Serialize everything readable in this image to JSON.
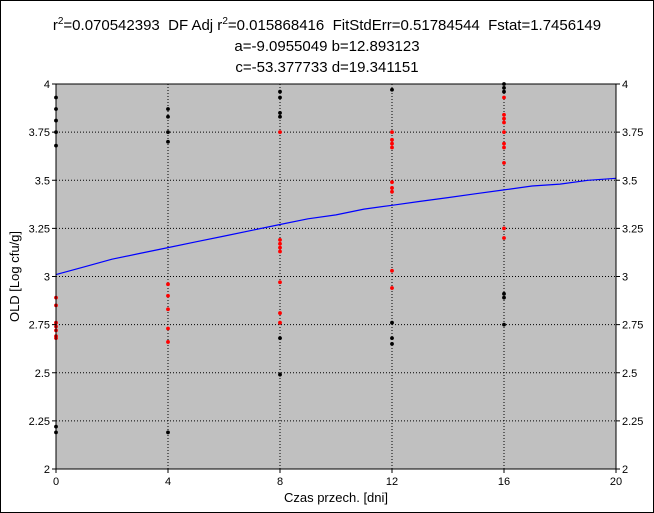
{
  "stats": {
    "line1": {
      "r2_label": "r",
      "r2_sup": "2",
      "r2_value": "=0.070542393",
      "df_label": "DF Adj r",
      "df_sup": "2",
      "df_value": "=0.015868416",
      "fit_std_err": "FitStdErr=0.51784544",
      "fstat": "Fstat=1.7456149"
    },
    "line2": "a=-9.0955049 b=12.893123",
    "line3": "c=-53.377733 d=19.341151"
  },
  "chart_data": {
    "type": "scatter",
    "xlabel": "Czas przech. [dni]",
    "ylabel": "OLD [Log cfu/g]",
    "xlim": [
      0,
      20
    ],
    "ylim": [
      2,
      4
    ],
    "x_ticks": [
      "0",
      "4",
      "8",
      "12",
      "16",
      "20"
    ],
    "y_ticks": [
      "2",
      "2.25",
      "2.5",
      "2.75",
      "3",
      "3.25",
      "3.5",
      "3.75",
      "4"
    ],
    "grid": true,
    "colors": {
      "plot_background": "#c0c0c0",
      "grid": "#000000",
      "black_points": "#000000",
      "red_points": "#ff0000",
      "fit_line": "#0000ff"
    },
    "series": [
      {
        "color": "#000000",
        "points": [
          [
            0,
            3.93
          ],
          [
            0,
            3.87
          ],
          [
            0,
            3.81
          ],
          [
            0,
            3.75
          ],
          [
            0,
            3.68
          ],
          [
            0,
            2.22
          ],
          [
            0,
            2.19
          ],
          [
            4,
            3.87
          ],
          [
            4,
            3.83
          ],
          [
            4,
            3.75
          ],
          [
            4,
            3.7
          ],
          [
            4,
            2.19
          ],
          [
            8,
            3.96
          ],
          [
            8,
            3.93
          ],
          [
            8,
            3.85
          ],
          [
            8,
            3.83
          ],
          [
            8,
            2.68
          ],
          [
            8,
            2.49
          ],
          [
            12,
            3.97
          ],
          [
            12,
            2.76
          ],
          [
            12,
            2.68
          ],
          [
            12,
            2.65
          ],
          [
            16,
            4.0
          ],
          [
            16,
            3.98
          ],
          [
            16,
            3.96
          ],
          [
            16,
            2.91
          ],
          [
            16,
            2.89
          ],
          [
            16,
            2.75
          ]
        ]
      },
      {
        "color": "#ff0000",
        "points": [
          [
            0,
            2.89
          ],
          [
            0,
            2.85
          ],
          [
            0,
            2.76
          ],
          [
            0,
            2.74
          ],
          [
            0,
            2.72
          ],
          [
            0,
            2.69
          ],
          [
            0,
            2.68
          ],
          [
            4,
            2.96
          ],
          [
            4,
            2.9
          ],
          [
            4,
            2.83
          ],
          [
            4,
            2.73
          ],
          [
            4,
            2.66
          ],
          [
            8,
            3.75
          ],
          [
            8,
            3.19
          ],
          [
            8,
            3.17
          ],
          [
            8,
            3.15
          ],
          [
            8,
            3.13
          ],
          [
            8,
            2.97
          ],
          [
            8,
            2.81
          ],
          [
            8,
            2.76
          ],
          [
            12,
            3.75
          ],
          [
            12,
            3.71
          ],
          [
            12,
            3.69
          ],
          [
            12,
            3.67
          ],
          [
            12,
            3.49
          ],
          [
            12,
            3.46
          ],
          [
            12,
            3.44
          ],
          [
            12,
            3.03
          ],
          [
            12,
            2.94
          ],
          [
            16,
            3.93
          ],
          [
            16,
            3.84
          ],
          [
            16,
            3.82
          ],
          [
            16,
            3.8
          ],
          [
            16,
            3.75
          ],
          [
            16,
            3.69
          ],
          [
            16,
            3.67
          ],
          [
            16,
            3.59
          ],
          [
            16,
            3.25
          ],
          [
            16,
            3.2
          ]
        ]
      },
      {
        "type": "line",
        "color": "#0000ff",
        "x": [
          0,
          1,
          2,
          3,
          4,
          5,
          6,
          7,
          8,
          9,
          10,
          11,
          12,
          13,
          14,
          15,
          16,
          17,
          18,
          19,
          20
        ],
        "y": [
          3.01,
          3.05,
          3.09,
          3.12,
          3.15,
          3.18,
          3.21,
          3.24,
          3.27,
          3.3,
          3.32,
          3.35,
          3.37,
          3.39,
          3.41,
          3.43,
          3.45,
          3.47,
          3.48,
          3.5,
          3.51
        ]
      }
    ]
  }
}
